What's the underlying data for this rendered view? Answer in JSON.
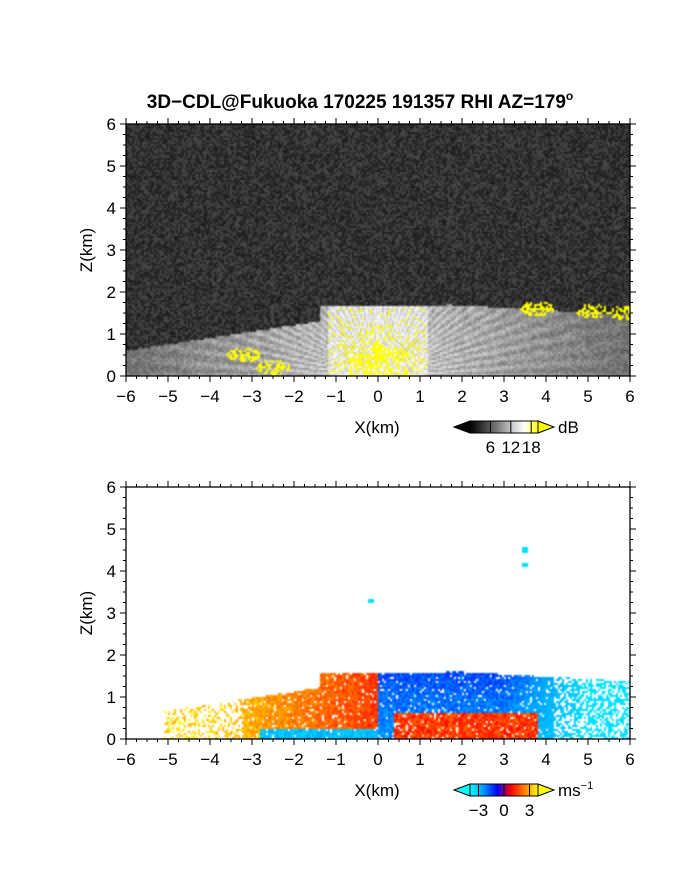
{
  "title": "3D−CDL@Fukuoka 170225 191357 RHI AZ=179",
  "title_superscript": "o",
  "colors": {
    "snr_ramp": [
      "#000000",
      "#3a3a3a",
      "#7a7a7a",
      "#c4c4c4",
      "#ffffff",
      "#ffff00"
    ],
    "doppler_ramp": [
      "#00ffff",
      "#0099ff",
      "#0000ff",
      "#ff0000",
      "#ff7f00",
      "#ffff00"
    ]
  },
  "chart_data": [
    {
      "type": "heatmap",
      "quantity": "SNR",
      "xlabel": "X(km)",
      "ylabel": "Z(km)",
      "xlim": [
        -6,
        6
      ],
      "ylim": [
        0,
        6
      ],
      "xticks": [
        -6,
        -5,
        -4,
        -3,
        -2,
        -1,
        0,
        1,
        2,
        3,
        4,
        5,
        6
      ],
      "yticks": [
        0,
        1,
        2,
        3,
        4,
        5,
        6
      ],
      "colorbar": {
        "unit": "dB",
        "ticks": [
          6,
          12,
          18
        ],
        "range": [
          0,
          20
        ],
        "extend": "both"
      },
      "features": {
        "echo_top_left": {
          "x": [
            -6,
            -1.4
          ],
          "z_top": [
            0.6,
            1.3
          ]
        },
        "echo_top_center": {
          "x": [
            -1.3,
            1.6
          ],
          "z_top": 1.65
        },
        "echo_top_right": {
          "x": [
            1.6,
            6
          ],
          "z_top": [
            1.7,
            1.45
          ]
        },
        "strong_echo_patches_db": 19,
        "strong_echo_locations": [
          {
            "x": 0.3,
            "z": 0.5
          },
          {
            "x": -0.3,
            "z": 0.35
          },
          {
            "x": -2.5,
            "z": 0.2
          },
          {
            "x": -3.2,
            "z": 0.5
          },
          {
            "x": 3.8,
            "z": 1.6
          },
          {
            "x": 5.1,
            "z": 1.55
          },
          {
            "x": 5.9,
            "z": 1.5
          }
        ]
      }
    },
    {
      "type": "heatmap",
      "quantity": "Doppler velocity",
      "xlabel": "X(km)",
      "ylabel": "Z(km)",
      "xlim": [
        -6,
        6
      ],
      "ylim": [
        0,
        6
      ],
      "xticks": [
        -6,
        -5,
        -4,
        -3,
        -2,
        -1,
        0,
        1,
        2,
        3,
        4,
        5,
        6
      ],
      "yticks": [
        0,
        1,
        2,
        3,
        4,
        5,
        6
      ],
      "colorbar": {
        "unit": "ms",
        "unit_superscript": "−1",
        "ticks": [
          -3,
          0,
          3
        ],
        "range": [
          -4,
          4
        ],
        "extend": "both"
      },
      "features": {
        "left_region_velocity": [
          1.5,
          3.5
        ],
        "right_region_velocity": [
          -2.5,
          -1.5
        ],
        "far_right_velocity": -3.5,
        "low_level_left_velocity": -3,
        "low_level_right_velocity": 1.5,
        "isolated_points": [
          {
            "x": 3.5,
            "z": 4.5,
            "v": -3.5
          },
          {
            "x": 3.5,
            "z": 4.15,
            "v": -3.5
          },
          {
            "x": -0.15,
            "z": 3.3,
            "v": -3.5
          }
        ]
      }
    }
  ]
}
